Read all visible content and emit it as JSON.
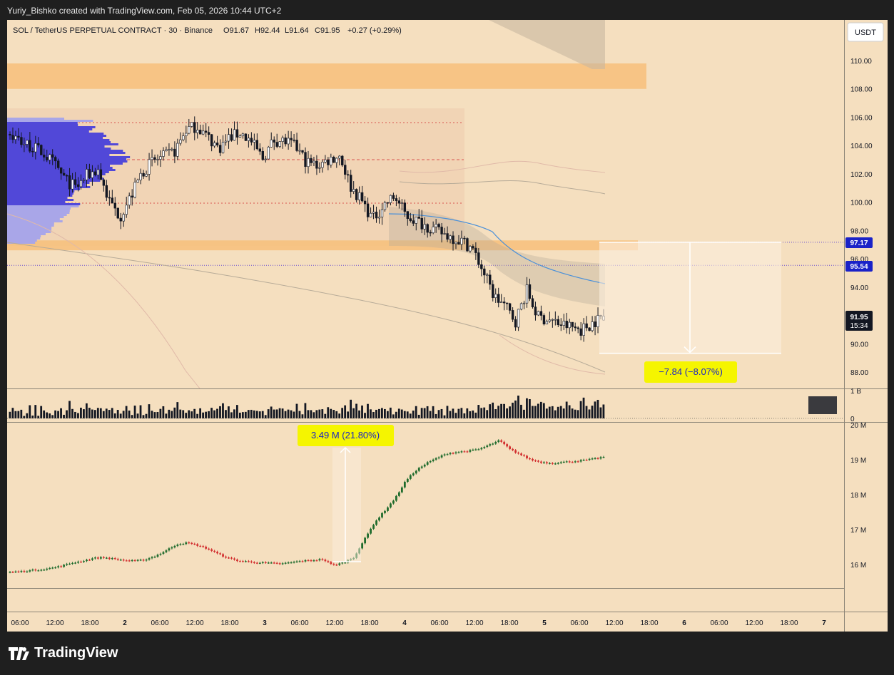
{
  "header": {
    "text": "Yuriy_Bishko created with TradingView.com, Feb 05, 2026 10:44 UTC+2"
  },
  "symbol_line": {
    "name": "SOL / TetherUS PERPETUAL CONTRACT · 30 · Binance",
    "o": "O91.67",
    "h": "H92.44",
    "l": "L91.64",
    "c": "C91.95",
    "chg": "+0.27 (+0.29%)"
  },
  "currency_button": "USDT",
  "price_labels": {
    "p1": {
      "value": "97.17",
      "color": "#1a22c8"
    },
    "p2": {
      "value": "95.54",
      "color": "#1a22c8"
    },
    "last": {
      "value": "91.95",
      "countdown": "15:34",
      "color": "#131722"
    }
  },
  "measure_price": {
    "text": "−7.84 (−8.07%)",
    "from": 97.17,
    "to": 89.33
  },
  "measure_volume": {
    "text": "3.49 M (21.80%)"
  },
  "footer": {
    "brand": "TradingView"
  },
  "colors": {
    "up": "#26a69a",
    "down": "#ef5350",
    "bg": "#f5dfbf",
    "zone": "#f7c07a",
    "profile": "#5148d8",
    "badge": "#f5f500",
    "ma": "#4a90d9"
  },
  "chart_data": [
    {
      "type": "candlestick",
      "title": "SOL / TetherUS PERPETUAL CONTRACT · 30 · Binance",
      "ylim": [
        87,
        112
      ],
      "y_ticks": [
        "110.00",
        "108.00",
        "106.00",
        "104.00",
        "102.00",
        "100.00",
        "98.00",
        "96.00",
        "94.00",
        "92.00",
        "90.00",
        "88.00"
      ],
      "x_ticks": [
        "06:00",
        "12:00",
        "18:00",
        "2",
        "06:00",
        "12:00",
        "18:00",
        "3",
        "06:00",
        "12:00",
        "18:00",
        "4",
        "06:00",
        "12:00",
        "18:00",
        "5",
        "06:00",
        "12:00",
        "18:00",
        "6",
        "06:00",
        "12:00",
        "18:00",
        "7"
      ],
      "close_path": [
        104.8,
        104.3,
        103.9,
        103.5,
        102.7,
        101.6,
        101.0,
        101.9,
        102.3,
        100.1,
        99.0,
        100.4,
        102.1,
        102.9,
        103.2,
        103.6,
        105.1,
        105.4,
        104.6,
        103.8,
        104.6,
        104.9,
        104.2,
        103.1,
        104.4,
        104.3,
        103.9,
        102.8,
        102.6,
        103.0,
        103.3,
        101.1,
        100.1,
        98.8,
        99.8,
        100.4,
        99.1,
        98.7,
        98.3,
        97.9,
        97.6,
        97.3,
        96.8,
        95.2,
        93.4,
        92.7,
        91.6,
        93.8,
        91.9,
        91.7,
        91.4,
        91.2,
        91.0,
        91.5,
        91.95
      ],
      "last": {
        "o": 91.67,
        "h": 92.44,
        "l": 91.64,
        "c": 91.95
      },
      "levels": [
        {
          "label": "97.17",
          "value": 97.17
        },
        {
          "label": "95.54",
          "value": 95.54
        }
      ],
      "zones": [
        {
          "from": 108.0,
          "to": 109.8
        },
        {
          "from": 96.6,
          "to": 97.3
        }
      ]
    },
    {
      "type": "bar",
      "name": "Volume",
      "y_ticks": [
        "1 B",
        "0"
      ]
    },
    {
      "type": "line",
      "name": "Open interest",
      "ylim": [
        15.3,
        20.1
      ],
      "y_ticks": [
        "20 M",
        "19 M",
        "18 M",
        "17 M",
        "16 M"
      ],
      "values": [
        15.78,
        15.8,
        15.83,
        15.86,
        15.9,
        15.96,
        16.05,
        16.1,
        16.18,
        16.2,
        16.16,
        16.12,
        16.1,
        16.14,
        16.25,
        16.4,
        16.58,
        16.62,
        16.55,
        16.45,
        16.3,
        16.18,
        16.1,
        16.08,
        16.05,
        16.04,
        16.02,
        16.06,
        16.1,
        16.12,
        16.15,
        15.98,
        16.05,
        16.2,
        16.7,
        17.2,
        17.55,
        17.9,
        18.4,
        18.7,
        18.9,
        19.05,
        19.18,
        19.22,
        19.25,
        19.3,
        19.42,
        19.55,
        19.3,
        19.15,
        19.0,
        18.93,
        18.9,
        18.93,
        18.95,
        18.98,
        19.02,
        19.08
      ]
    }
  ]
}
